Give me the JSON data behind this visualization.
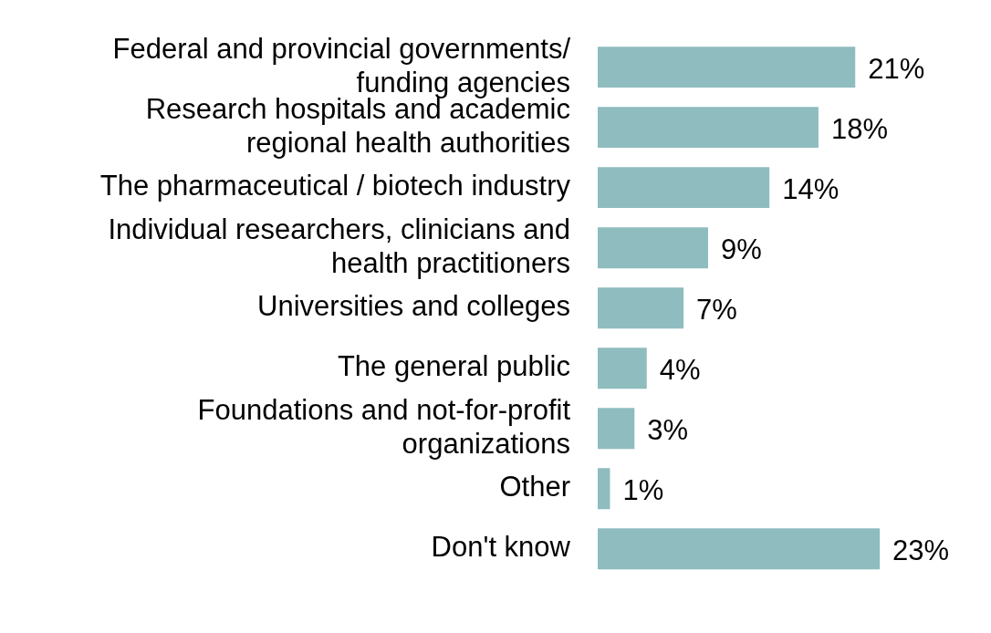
{
  "chart_data": {
    "type": "bar",
    "orientation": "horizontal",
    "categories": [
      "Federal and provincial governments/ funding agencies",
      "Research hospitals and academic regional health authorities",
      "The pharmaceutical / biotech industry",
      "Individual researchers, clinicians and health practitioners",
      "Universities and colleges",
      "The general public",
      "Foundations and not-for-profit organizations",
      "Other",
      "Don't know"
    ],
    "values": [
      21,
      18,
      14,
      9,
      7,
      4,
      3,
      1,
      23
    ],
    "value_labels": [
      "21%",
      "18%",
      "14%",
      "9%",
      "7%",
      "4%",
      "3%",
      "1%",
      "23%"
    ],
    "color": "#8fbcbe"
  }
}
